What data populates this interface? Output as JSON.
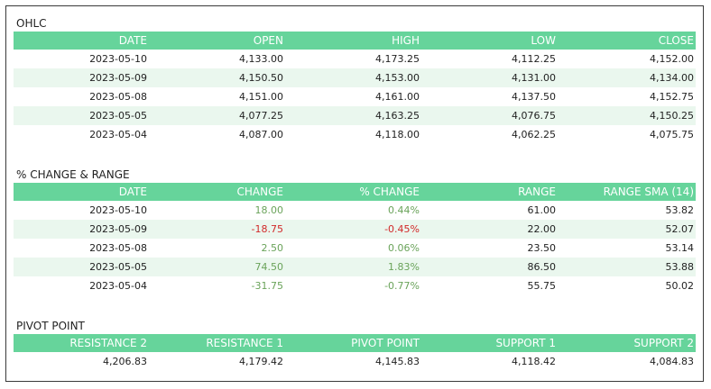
{
  "ohlc": {
    "title": "OHLC",
    "columns": [
      "DATE",
      "OPEN",
      "HIGH",
      "LOW",
      "CLOSE"
    ],
    "rows": [
      [
        "2023-05-10",
        "4,133.00",
        "4,173.25",
        "4,112.25",
        "4,152.00"
      ],
      [
        "2023-05-09",
        "4,150.50",
        "4,153.00",
        "4,131.00",
        "4,134.00"
      ],
      [
        "2023-05-08",
        "4,151.00",
        "4,161.00",
        "4,137.50",
        "4,152.75"
      ],
      [
        "2023-05-05",
        "4,077.25",
        "4,163.25",
        "4,076.75",
        "4,150.25"
      ],
      [
        "2023-05-04",
        "4,087.00",
        "4,118.00",
        "4,062.25",
        "4,075.75"
      ]
    ]
  },
  "change": {
    "title": "% CHANGE & RANGE",
    "columns": [
      "DATE",
      "CHANGE",
      "% CHANGE",
      "RANGE",
      "RANGE SMA (14)"
    ],
    "rows": [
      [
        "2023-05-10",
        "18.00",
        "0.44%",
        "61.00",
        "53.82"
      ],
      [
        "2023-05-09",
        "-18.75",
        "-0.45%",
        "22.00",
        "52.07"
      ],
      [
        "2023-05-08",
        "2.50",
        "0.06%",
        "23.50",
        "53.14"
      ],
      [
        "2023-05-05",
        "74.50",
        "1.83%",
        "86.50",
        "53.88"
      ],
      [
        "2023-05-04",
        "-31.75",
        "-0.77%",
        "55.75",
        "50.02"
      ]
    ],
    "colors": {
      "positive": "#6aa35a",
      "negative": "#d22a2a"
    }
  },
  "pivot": {
    "title": "PIVOT POINT",
    "columns": [
      "RESISTANCE 2",
      "RESISTANCE 1",
      "PIVOT POINT",
      "SUPPORT 1",
      "SUPPORT 2"
    ],
    "rows": [
      [
        "4,206.83",
        "4,179.42",
        "4,145.83",
        "4,118.42",
        "4,084.83"
      ]
    ]
  },
  "colors": {
    "header": "#66d49b",
    "row_alt": "#eaf7ee"
  }
}
